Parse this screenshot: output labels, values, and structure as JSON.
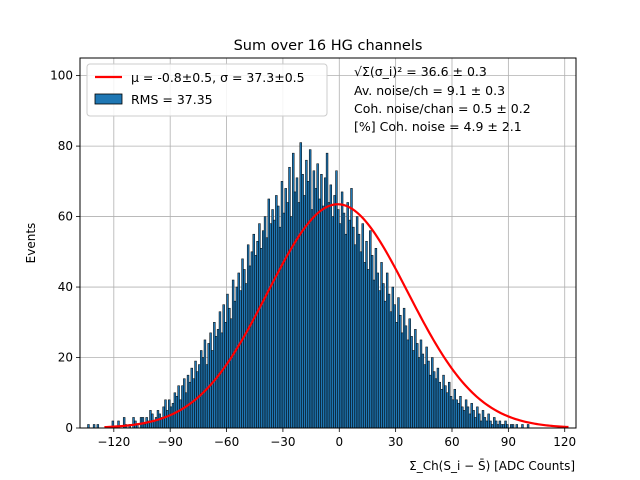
{
  "chart_data": {
    "type": "bar",
    "title": "Sum over 16 HG channels",
    "xlabel": "Σ_Ch(S_i − S̄) [ADC Counts]",
    "ylabel": "Events",
    "xlim": [
      -138,
      126
    ],
    "ylim": [
      0,
      105
    ],
    "xticks": [
      "−120",
      "−90",
      "−60",
      "−30",
      "0",
      "30",
      "60",
      "90",
      "120"
    ],
    "yticks": [
      "0",
      "20",
      "40",
      "60",
      "80",
      "100"
    ],
    "grid": true,
    "legend_position": "top-left",
    "bar_color": "#1f77b4",
    "fit_color": "#ff0000",
    "bin_width": 1,
    "histogram": {
      "x_start": -134,
      "values": [
        1,
        0,
        0,
        1,
        0,
        1,
        0,
        0,
        0,
        0,
        0,
        0,
        0,
        2,
        0,
        0,
        2,
        0,
        0,
        3,
        1,
        0,
        1,
        0,
        3,
        2,
        1,
        0,
        3,
        3,
        1,
        3,
        2,
        5,
        4,
        2,
        3,
        5,
        4,
        3,
        6,
        8,
        5,
        8,
        6,
        7,
        10,
        9,
        12,
        8,
        12,
        14,
        10,
        15,
        13,
        17,
        14,
        19,
        16,
        18,
        22,
        20,
        25,
        18,
        24,
        27,
        22,
        30,
        26,
        28,
        33,
        27,
        35,
        30,
        38,
        34,
        31,
        42,
        36,
        40,
        44,
        39,
        48,
        45,
        41,
        52,
        46,
        50,
        55,
        49,
        53,
        58,
        51,
        56,
        60,
        54,
        65,
        58,
        62,
        59,
        66,
        63,
        57,
        70,
        61,
        68,
        64,
        74,
        60,
        78,
        67,
        71,
        64,
        81,
        72,
        66,
        76,
        70,
        79,
        62,
        73,
        68,
        75,
        65,
        72,
        63,
        71,
        78,
        64,
        69,
        60,
        66,
        73,
        62,
        58,
        67,
        61,
        55,
        64,
        59,
        68,
        57,
        52,
        60,
        55,
        50,
        58,
        47,
        53,
        45,
        56,
        49,
        42,
        51,
        44,
        39,
        47,
        41,
        36,
        44,
        38,
        33,
        40,
        35,
        30,
        37,
        32,
        27,
        34,
        29,
        25,
        31,
        26,
        22,
        28,
        24,
        20,
        25,
        21,
        18,
        23,
        19,
        15,
        20,
        16,
        14,
        17,
        13,
        11,
        15,
        12,
        10,
        13,
        9,
        8,
        11,
        8,
        7,
        9,
        6,
        5,
        8,
        6,
        4,
        7,
        5,
        3,
        6,
        4,
        2,
        5,
        3,
        2,
        4,
        2,
        1,
        3,
        2,
        1,
        2,
        1,
        1,
        2,
        1,
        0,
        1,
        1,
        0,
        1,
        0,
        0,
        1,
        0,
        0,
        1,
        0,
        0,
        0,
        0,
        0,
        0,
        0,
        0,
        0,
        0,
        0,
        0,
        0,
        0,
        0,
        0,
        0,
        0,
        0,
        0,
        0,
        0,
        0,
        0
      ]
    },
    "fit": {
      "mu": -0.8,
      "sigma": 37.3,
      "amplitude": 63.5
    },
    "legend": [
      {
        "label": "μ = -0.8±0.5, σ = 37.3±0.5",
        "kind": "line"
      },
      {
        "label": "RMS = 37.35",
        "kind": "patch"
      }
    ],
    "annotations": [
      "√Σ(σ_i)² = 36.6 ± 0.3",
      "Av. noise/ch = 9.1 ± 0.3",
      "Coh. noise/chan = 0.5 ± 0.2",
      "[%] Coh. noise = 4.9 ± 2.1"
    ]
  }
}
